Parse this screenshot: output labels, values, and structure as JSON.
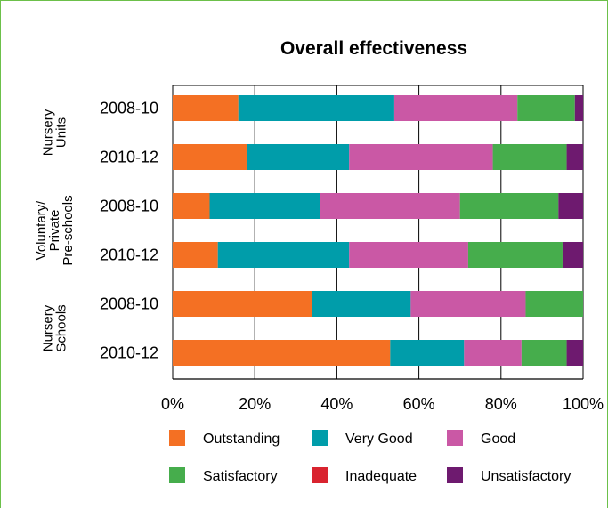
{
  "chart_data": {
    "type": "bar",
    "orientation": "horizontal",
    "stacked": true,
    "title": "Overall effectiveness",
    "groups": [
      {
        "label": [
          "Nursery",
          "Units"
        ],
        "rows": [
          0,
          1
        ]
      },
      {
        "label": [
          "Voluntary/",
          "Private",
          "Pre-schools"
        ],
        "rows": [
          2,
          3
        ]
      },
      {
        "label": [
          "Nursery",
          "Schools"
        ],
        "rows": [
          4,
          5
        ]
      }
    ],
    "categories": [
      "2008-10",
      "2010-12",
      "2008-10",
      "2010-12",
      "2008-10",
      "2010-12"
    ],
    "series": [
      {
        "name": "Outstanding",
        "color": "#f47023",
        "values": [
          16,
          18,
          9,
          11,
          34,
          53
        ]
      },
      {
        "name": "Very Good",
        "color": "#009daa",
        "values": [
          38,
          25,
          27,
          32,
          24,
          18
        ]
      },
      {
        "name": "Good",
        "color": "#ca58a5",
        "values": [
          30,
          35,
          34,
          29,
          28,
          14
        ]
      },
      {
        "name": "Satisfactory",
        "color": "#46ad4c",
        "values": [
          14,
          18,
          24,
          23,
          14,
          11
        ]
      },
      {
        "name": "Inadequate",
        "color": "#d9232f",
        "values": [
          0,
          0,
          0,
          0,
          0,
          0
        ]
      },
      {
        "name": "Unsatisfactory",
        "color": "#6e1a6f",
        "values": [
          2,
          4,
          6,
          5,
          0,
          4
        ]
      }
    ],
    "xlim": [
      0,
      100
    ],
    "xticks": [
      0,
      20,
      40,
      60,
      80,
      100
    ],
    "xtick_labels": [
      "0%",
      "20%",
      "40%",
      "60%",
      "80%",
      "100%"
    ],
    "grid": "vertical",
    "legend_position": "bottom"
  }
}
